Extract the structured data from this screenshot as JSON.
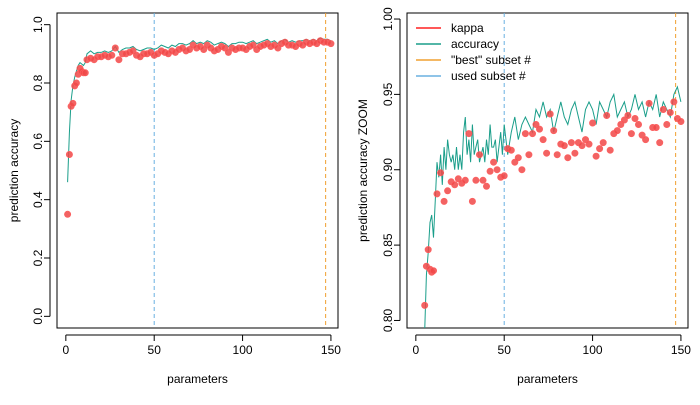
{
  "colors": {
    "kappa": "#ff2020",
    "accuracy": "#1a9e8a",
    "best": "#f0a030",
    "used": "#6ab0e0",
    "point_fill": "#f04848",
    "point_edge": "#ff6060"
  },
  "legend": {
    "entries": [
      {
        "label": "kappa",
        "color": "#ff2020"
      },
      {
        "label": "accuracy",
        "color": "#1a9e8a"
      },
      {
        "label": "\"best\" subset #",
        "color": "#f0a030"
      },
      {
        "label": "used subset #",
        "color": "#6ab0e0"
      }
    ]
  },
  "chart_data": [
    {
      "type": "line",
      "xlabel": "parameters",
      "ylabel": "prediction accuracy",
      "xlim": [
        -5,
        154
      ],
      "ylim": [
        -0.04,
        1.04
      ],
      "xticks": [
        0,
        50,
        100,
        150
      ],
      "xtick_labels": [
        "0",
        "50",
        "100",
        "150"
      ],
      "yticks": [
        0.0,
        0.2,
        0.4,
        0.6,
        0.8,
        1.0
      ],
      "ytick_labels": [
        "0.0",
        "0.2",
        "0.4",
        "0.6",
        "0.8",
        "1.0"
      ],
      "vlines": {
        "used": 50,
        "best": 147
      },
      "series": [
        {
          "name": "kappa",
          "kind": "points",
          "x": [
            1,
            2,
            3,
            4,
            5,
            6,
            7,
            8,
            9,
            10,
            11,
            12,
            14,
            16,
            18,
            20,
            22,
            24,
            26,
            28,
            30,
            32,
            34,
            36,
            38,
            40,
            42,
            44,
            46,
            48,
            50,
            52,
            54,
            56,
            58,
            60,
            62,
            64,
            66,
            68,
            70,
            72,
            74,
            76,
            78,
            80,
            82,
            84,
            86,
            88,
            90,
            92,
            94,
            96,
            98,
            100,
            102,
            104,
            106,
            108,
            110,
            112,
            114,
            116,
            118,
            120,
            122,
            124,
            126,
            128,
            130,
            132,
            134,
            136,
            138,
            140,
            142,
            144,
            146,
            148,
            150
          ],
          "y": [
            0.35,
            0.555,
            0.72,
            0.73,
            0.79,
            0.8,
            0.83,
            0.85,
            0.84,
            0.835,
            0.835,
            0.88,
            0.885,
            0.88,
            0.89,
            0.89,
            0.895,
            0.89,
            0.895,
            0.92,
            0.88,
            0.9,
            0.9,
            0.905,
            0.91,
            0.895,
            0.89,
            0.9,
            0.9,
            0.905,
            0.895,
            0.9,
            0.91,
            0.905,
            0.9,
            0.91,
            0.905,
            0.915,
            0.92,
            0.91,
            0.915,
            0.93,
            0.92,
            0.925,
            0.915,
            0.93,
            0.92,
            0.91,
            0.915,
            0.925,
            0.92,
            0.905,
            0.92,
            0.915,
            0.92,
            0.92,
            0.915,
            0.925,
            0.93,
            0.915,
            0.925,
            0.93,
            0.935,
            0.925,
            0.93,
            0.92,
            0.935,
            0.94,
            0.93,
            0.93,
            0.925,
            0.935,
            0.93,
            0.94,
            0.935,
            0.94,
            0.935,
            0.945,
            0.94,
            0.94,
            0.935
          ]
        },
        {
          "name": "accuracy",
          "kind": "line",
          "x": [
            1,
            2,
            3,
            4,
            5,
            6,
            7,
            8,
            9,
            10,
            11,
            12,
            14,
            16,
            18,
            20,
            22,
            24,
            26,
            28,
            30,
            32,
            34,
            36,
            38,
            40,
            42,
            44,
            46,
            48,
            50,
            52,
            54,
            56,
            58,
            60,
            62,
            64,
            66,
            68,
            70,
            72,
            74,
            76,
            78,
            80,
            82,
            84,
            86,
            88,
            90,
            92,
            94,
            96,
            98,
            100,
            102,
            104,
            106,
            108,
            110,
            112,
            114,
            116,
            118,
            120,
            122,
            124,
            126,
            128,
            130,
            132,
            134,
            136,
            138,
            140,
            142,
            144,
            146,
            148,
            150
          ],
          "y": [
            0.46,
            0.63,
            0.74,
            0.79,
            0.82,
            0.84,
            0.86,
            0.87,
            0.865,
            0.86,
            0.87,
            0.9,
            0.91,
            0.9,
            0.905,
            0.905,
            0.91,
            0.905,
            0.91,
            0.925,
            0.905,
            0.915,
            0.92,
            0.92,
            0.925,
            0.915,
            0.91,
            0.915,
            0.92,
            0.92,
            0.915,
            0.92,
            0.93,
            0.925,
            0.92,
            0.93,
            0.925,
            0.935,
            0.935,
            0.93,
            0.935,
            0.945,
            0.935,
            0.94,
            0.935,
            0.945,
            0.94,
            0.93,
            0.935,
            0.94,
            0.935,
            0.925,
            0.935,
            0.935,
            0.94,
            0.94,
            0.935,
            0.94,
            0.945,
            0.935,
            0.94,
            0.945,
            0.95,
            0.94,
            0.945,
            0.935,
            0.945,
            0.95,
            0.94,
            0.945,
            0.94,
            0.945,
            0.945,
            0.95,
            0.945,
            0.95,
            0.945,
            0.955,
            0.95,
            0.95,
            0.945
          ]
        }
      ]
    },
    {
      "type": "line",
      "xlabel": "parameters",
      "ylabel": "prediction accuracy ZOOM",
      "xlim": [
        -5,
        154
      ],
      "ylim": [
        0.795,
        1.004
      ],
      "xticks": [
        0,
        50,
        100,
        150
      ],
      "xtick_labels": [
        "0",
        "50",
        "100",
        "150"
      ],
      "yticks": [
        0.8,
        0.85,
        0.9,
        0.95,
        1.0
      ],
      "ytick_labels": [
        "0.80",
        "0.85",
        "0.90",
        "0.95",
        "1.00"
      ],
      "vlines": {
        "used": 50,
        "best": 147
      },
      "series": [
        {
          "name": "kappa",
          "kind": "points",
          "x": [
            5,
            6,
            7,
            8,
            9,
            10,
            12,
            14,
            16,
            18,
            20,
            22,
            24,
            26,
            28,
            30,
            32,
            34,
            36,
            38,
            40,
            42,
            44,
            46,
            48,
            50,
            52,
            54,
            56,
            58,
            60,
            62,
            64,
            66,
            68,
            70,
            72,
            74,
            76,
            78,
            80,
            82,
            84,
            86,
            88,
            90,
            92,
            94,
            96,
            98,
            100,
            102,
            104,
            106,
            108,
            110,
            112,
            114,
            116,
            118,
            120,
            122,
            124,
            126,
            128,
            130,
            132,
            134,
            136,
            138,
            140,
            142,
            144,
            146,
            148,
            150
          ],
          "y": [
            0.81,
            0.836,
            0.847,
            0.834,
            0.832,
            0.833,
            0.884,
            0.898,
            0.879,
            0.886,
            0.892,
            0.89,
            0.894,
            0.891,
            0.893,
            0.924,
            0.879,
            0.893,
            0.91,
            0.893,
            0.889,
            0.899,
            0.905,
            0.9,
            0.895,
            0.896,
            0.914,
            0.913,
            0.905,
            0.908,
            0.9,
            0.924,
            0.91,
            0.924,
            0.93,
            0.927,
            0.92,
            0.911,
            0.937,
            0.926,
            0.91,
            0.917,
            0.916,
            0.908,
            0.918,
            0.911,
            0.918,
            0.916,
            0.92,
            0.917,
            0.931,
            0.909,
            0.914,
            0.918,
            0.936,
            0.913,
            0.924,
            0.926,
            0.93,
            0.933,
            0.936,
            0.924,
            0.934,
            0.93,
            0.923,
            0.92,
            0.944,
            0.928,
            0.928,
            0.918,
            0.94,
            0.93,
            0.938,
            0.945,
            0.934,
            0.932
          ]
        },
        {
          "name": "accuracy",
          "kind": "line",
          "x": [
            5,
            6,
            7,
            8,
            9,
            10,
            11,
            12,
            13,
            14,
            15,
            16,
            17,
            18,
            19,
            20,
            21,
            22,
            23,
            24,
            25,
            26,
            27,
            28,
            29,
            30,
            31,
            32,
            33,
            34,
            35,
            36,
            37,
            38,
            39,
            40,
            41,
            42,
            43,
            44,
            45,
            46,
            47,
            48,
            49,
            50,
            52,
            54,
            56,
            58,
            60,
            62,
            64,
            66,
            68,
            70,
            72,
            74,
            76,
            78,
            80,
            82,
            84,
            86,
            88,
            90,
            92,
            94,
            96,
            98,
            100,
            102,
            104,
            106,
            108,
            110,
            112,
            114,
            116,
            118,
            120,
            122,
            124,
            126,
            128,
            130,
            132,
            134,
            136,
            138,
            140,
            142,
            144,
            146,
            148,
            150
          ],
          "y": [
            0.793,
            0.83,
            0.845,
            0.865,
            0.87,
            0.855,
            0.88,
            0.905,
            0.895,
            0.91,
            0.89,
            0.915,
            0.9,
            0.92,
            0.91,
            0.905,
            0.91,
            0.9,
            0.915,
            0.9,
            0.91,
            0.9,
            0.925,
            0.935,
            0.91,
            0.92,
            0.905,
            0.93,
            0.91,
            0.915,
            0.92,
            0.905,
            0.91,
            0.915,
            0.905,
            0.92,
            0.91,
            0.93,
            0.915,
            0.915,
            0.92,
            0.905,
            0.915,
            0.925,
            0.91,
            0.93,
            0.91,
            0.925,
            0.935,
            0.92,
            0.93,
            0.935,
            0.93,
            0.925,
            0.94,
            0.935,
            0.945,
            0.935,
            0.94,
            0.925,
            0.935,
            0.945,
            0.935,
            0.93,
            0.94,
            0.945,
            0.935,
            0.925,
            0.94,
            0.945,
            0.94,
            0.93,
            0.945,
            0.94,
            0.935,
            0.945,
            0.95,
            0.935,
            0.94,
            0.945,
            0.935,
            0.94,
            0.95,
            0.94,
            0.945,
            0.935,
            0.945,
            0.94,
            0.95,
            0.935,
            0.945,
            0.94,
            0.935,
            0.95,
            0.955,
            0.945
          ]
        }
      ]
    }
  ]
}
